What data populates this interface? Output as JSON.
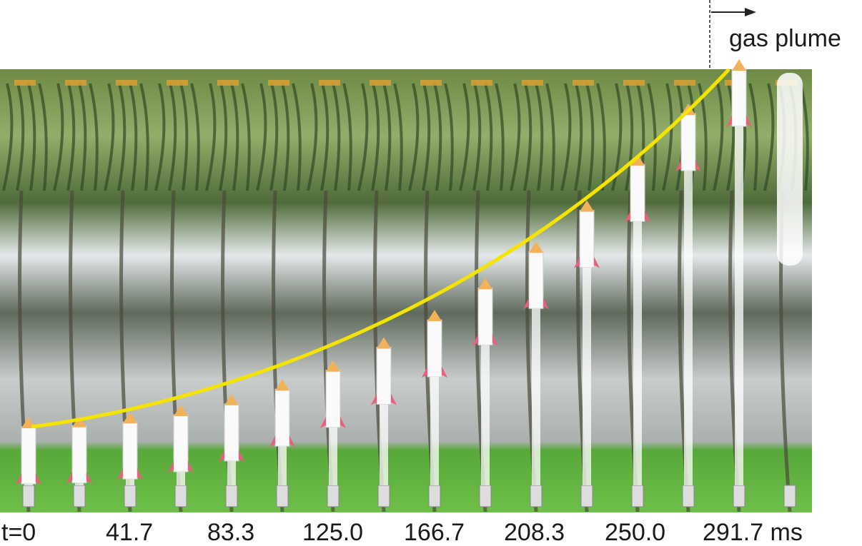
{
  "annotation": "gas plume",
  "time_labels": [
    "t=0",
    "41.7",
    "83.3",
    "125.0",
    "166.7",
    "208.3",
    "250.0",
    "291.7 ms"
  ]
}
